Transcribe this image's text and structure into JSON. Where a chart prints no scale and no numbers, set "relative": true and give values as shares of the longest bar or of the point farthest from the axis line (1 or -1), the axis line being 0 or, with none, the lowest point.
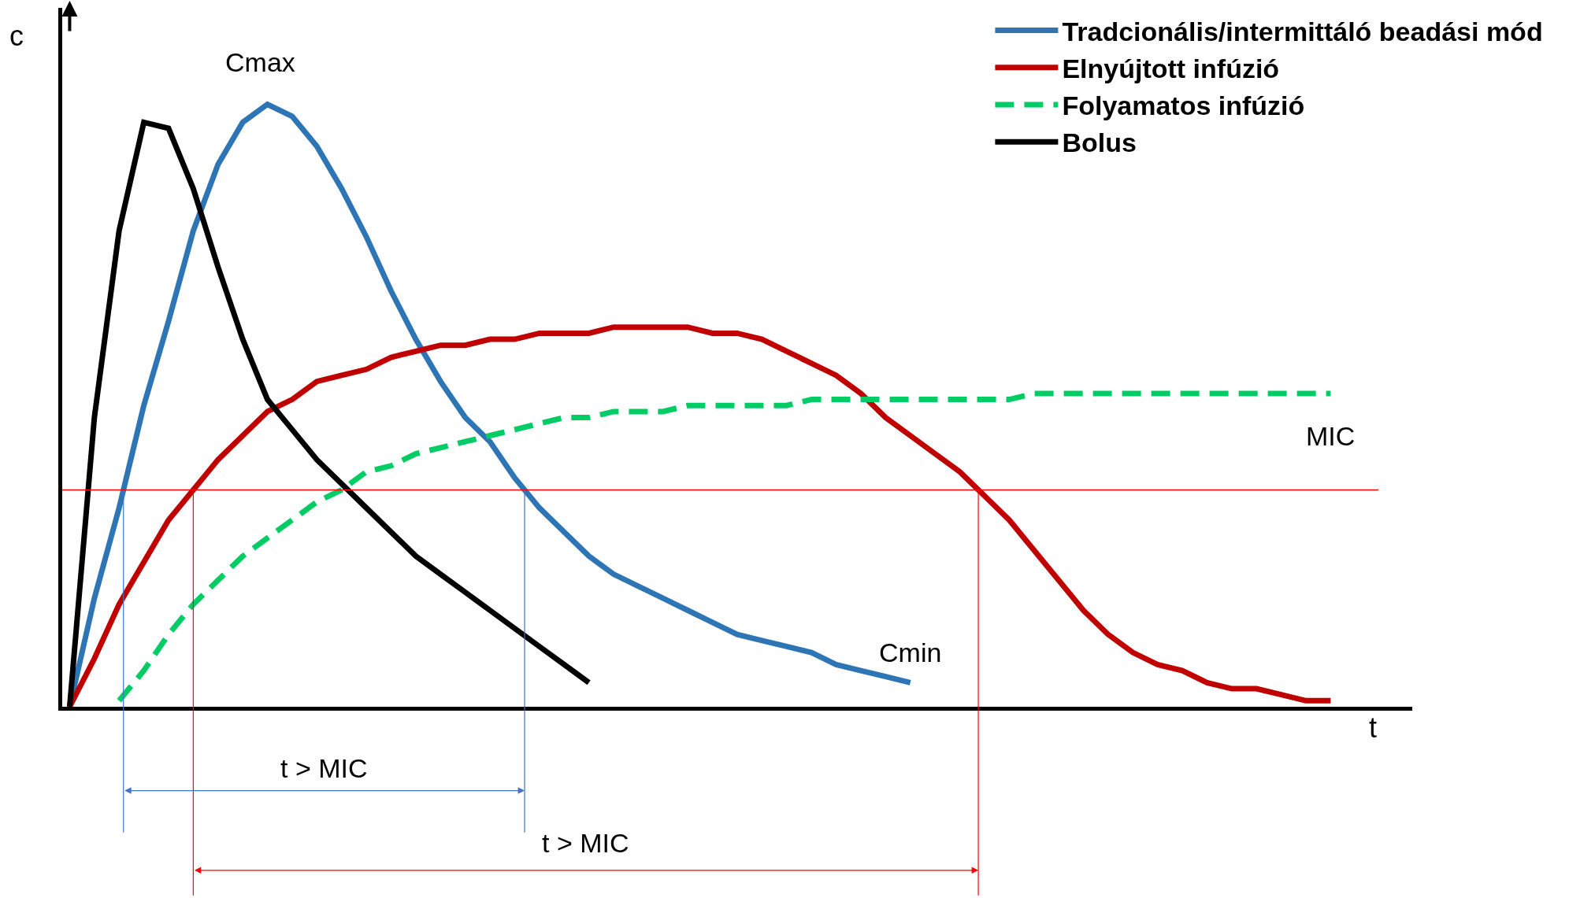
{
  "chart_data": {
    "type": "line",
    "relative": true,
    "xlabel": "t",
    "ylabel": "c",
    "legend": "top right",
    "categories": [
      null,
      null,
      null,
      null,
      null,
      null,
      null,
      null,
      null,
      null,
      null,
      null,
      null,
      null,
      null,
      null,
      null,
      null,
      null,
      null,
      null,
      null,
      null,
      null,
      null,
      null,
      null,
      null,
      null,
      null,
      null,
      null,
      null,
      null,
      null,
      null,
      null,
      null,
      null,
      null,
      null,
      null,
      null,
      null,
      null,
      null,
      null,
      null,
      null,
      null,
      null,
      null,
      null,
      null,
      null
    ],
    "series": [
      {
        "name": "Tradcionális/intermittáló beadási mód",
        "color": "#2e75b6",
        "line_style": "solid",
        "values": [
          0,
          0.18,
          0.33,
          0.5,
          0.64,
          0.79,
          0.9,
          0.97,
          1.0,
          0.98,
          0.93,
          0.86,
          0.78,
          0.69,
          0.61,
          0.54,
          0.48,
          0.44,
          0.38,
          0.33,
          0.29,
          0.25,
          0.22,
          0.2,
          0.18,
          0.16,
          0.14,
          0.12,
          0.11,
          0.1,
          0.09,
          0.07,
          0.06,
          0.05,
          0.04,
          null,
          null,
          null,
          null,
          null,
          null,
          null,
          null,
          null,
          null,
          null,
          null,
          null,
          null,
          null,
          null,
          null,
          null,
          null,
          null
        ]
      },
      {
        "name": "Elnyújtott infúzió",
        "color": "#c00000",
        "line_style": "solid",
        "values": [
          0.0,
          0.08,
          0.17,
          0.24,
          0.31,
          0.36,
          0.41,
          0.45,
          0.49,
          0.51,
          0.54,
          0.55,
          0.56,
          0.58,
          0.59,
          0.6,
          0.6,
          0.61,
          0.61,
          0.62,
          0.62,
          0.62,
          0.63,
          0.63,
          0.63,
          0.63,
          0.62,
          0.62,
          0.61,
          0.59,
          0.57,
          0.55,
          0.52,
          0.48,
          0.45,
          0.42,
          0.39,
          0.35,
          0.31,
          0.26,
          0.21,
          0.16,
          0.12,
          0.09,
          0.07,
          0.06,
          0.04,
          0.03,
          0.03,
          0.02,
          0.01,
          0.01,
          null,
          null,
          null
        ]
      },
      {
        "name": "Folyamatos infúzió",
        "color": "#00cc66",
        "line_style": "dashed",
        "values": [
          null,
          null,
          0.01,
          0.06,
          0.12,
          0.17,
          0.21,
          0.25,
          0.28,
          0.31,
          0.34,
          0.36,
          0.39,
          0.4,
          0.42,
          0.43,
          0.44,
          0.45,
          0.46,
          0.47,
          0.48,
          0.48,
          0.49,
          0.49,
          0.49,
          0.5,
          0.5,
          0.5,
          0.5,
          0.5,
          0.51,
          0.51,
          0.51,
          0.51,
          0.51,
          0.51,
          0.51,
          0.51,
          0.51,
          0.52,
          0.52,
          0.52,
          0.52,
          0.52,
          0.52,
          0.52,
          0.52,
          0.52,
          0.52,
          0.52,
          0.52,
          0.52,
          null,
          null,
          null
        ]
      },
      {
        "name": "Bolus",
        "color": "#000000",
        "line_style": "solid",
        "values": [
          0.0,
          0.48,
          0.79,
          0.97,
          0.96,
          0.86,
          0.73,
          0.61,
          0.51,
          0.46,
          0.41,
          0.37,
          0.33,
          0.29,
          0.25,
          0.22,
          0.19,
          0.16,
          0.13,
          0.1,
          0.07,
          0.04,
          null,
          null,
          null,
          null,
          null,
          null,
          null,
          null,
          null,
          null,
          null,
          null,
          null,
          null,
          null,
          null,
          null,
          null,
          null,
          null,
          null,
          null,
          null,
          null,
          null,
          null,
          null,
          null,
          null,
          null,
          null,
          null,
          null
        ]
      }
    ],
    "ref_lines": [
      {
        "axis": "y",
        "value": 0.36,
        "label": "MIC",
        "color": "#ff0000"
      }
    ],
    "annotations": [
      "Cmax",
      "Cmin",
      "t > MIC",
      "t > MIC"
    ]
  }
}
